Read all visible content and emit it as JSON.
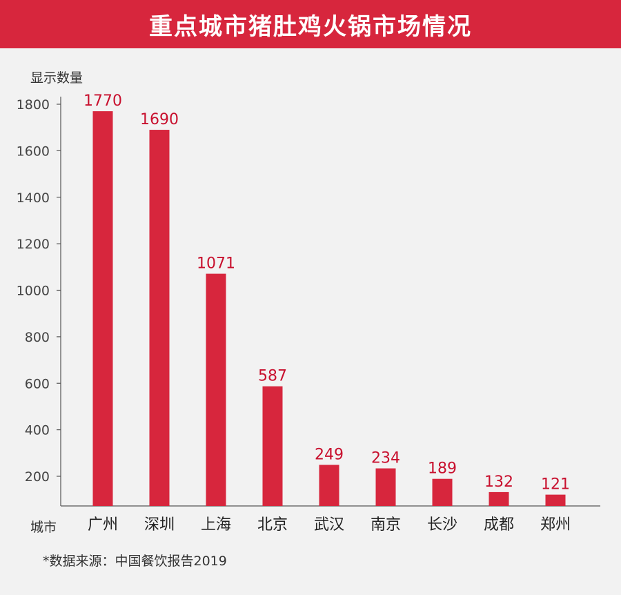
{
  "header": {
    "title": "重点城市猪肚鸡火锅市场情况"
  },
  "footer": {
    "source": "*数据来源：中国餐饮报告2019"
  },
  "colors": {
    "accent": "#d7263d",
    "value_label": "#c8102e",
    "background": "#f2f2f2"
  },
  "chart_data": {
    "type": "bar",
    "title": "重点城市猪肚鸡火锅市场情况",
    "xlabel": "城市",
    "ylabel": "显示数量",
    "categories": [
      "广州",
      "深圳",
      "上海",
      "北京",
      "武汉",
      "南京",
      "长沙",
      "成都",
      "郑州"
    ],
    "values": [
      1770,
      1690,
      1071,
      587,
      249,
      234,
      189,
      132,
      121
    ],
    "yticks": [
      200,
      400,
      600,
      800,
      1000,
      1200,
      1400,
      1600,
      1800
    ],
    "ylim": [
      60,
      1800
    ],
    "grid": false,
    "legend": "none"
  }
}
